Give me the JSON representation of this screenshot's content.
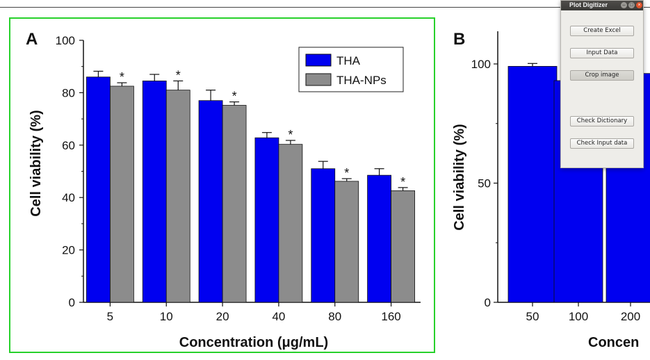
{
  "panel_a": {
    "label": "A",
    "ylabel": "Cell viability (%)",
    "xlabel": "Concentration (μg/mL)"
  },
  "panel_b": {
    "label": "B",
    "ylabel": "Cell viability (%)",
    "xlabel_visible": "Concen"
  },
  "colors": {
    "tha": "#0000f0",
    "tha_nps": "#8c8c8c",
    "frame": "#27d12b"
  },
  "chart_data": [
    {
      "type": "bar",
      "categories": [
        "5",
        "10",
        "20",
        "40",
        "80",
        "160"
      ],
      "series": [
        {
          "name": "THA",
          "values": [
            86,
            84.5,
            77,
            62.8,
            51,
            48.5
          ],
          "errors": [
            2.2,
            2.5,
            4,
            2,
            2.8,
            2.5
          ]
        },
        {
          "name": "THA-NPs",
          "values": [
            82.5,
            81,
            75.2,
            60.3,
            46.2,
            42.6
          ],
          "errors": [
            1.3,
            3.5,
            1.3,
            1.5,
            1,
            1.2
          ]
        }
      ],
      "significance": [
        "*",
        "*",
        "*",
        "*",
        "*",
        "*"
      ],
      "ylim": [
        0,
        100
      ],
      "yticks": [
        "0",
        "20",
        "40",
        "60",
        "80",
        "100"
      ],
      "legend": "top-right"
    },
    {
      "type": "bar",
      "categories": [
        "50",
        "100",
        "200"
      ],
      "series": [
        {
          "name": "",
          "values": [
            99,
            93,
            96
          ],
          "errors": [
            1.2,
            0,
            0
          ]
        }
      ],
      "yticks": [
        "0",
        "50",
        "100"
      ]
    }
  ],
  "window": {
    "title": "Plot Digitizer",
    "buttons": {
      "create_excel": "Create Excel",
      "input_data": "Input Data",
      "crop_image": "Crop image",
      "check_dictionary": "Check Dictionary",
      "check_input_data": "Check Input data"
    }
  }
}
